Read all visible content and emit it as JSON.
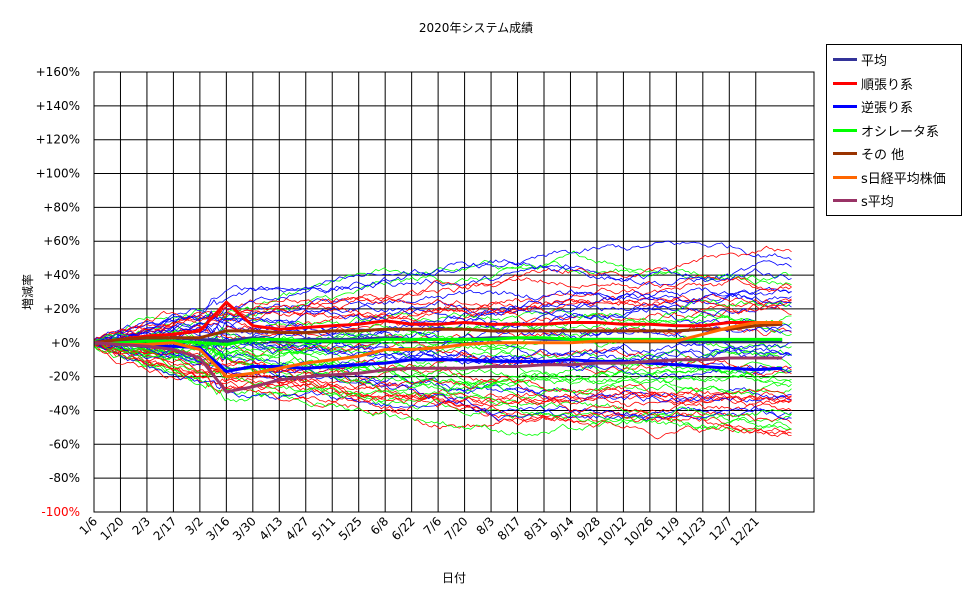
{
  "chart_data": {
    "type": "line",
    "title": "2020年システム成績",
    "xlabel": "日付",
    "ylabel": "増減率",
    "ylim": [
      -100,
      160
    ],
    "yticks": [
      160,
      140,
      120,
      100,
      80,
      60,
      40,
      20,
      0,
      -20,
      -40,
      -60,
      -80,
      -100
    ],
    "ytick_labels": [
      "+160%",
      "+140%",
      "+120%",
      "+100%",
      "+80%",
      "+60%",
      "+40%",
      "+20%",
      "+0%",
      "-20%",
      "-40%",
      "-60%",
      "-80%",
      "-100%"
    ],
    "xtick_labels": [
      "1/6",
      "1/20",
      "2/3",
      "2/17",
      "3/2",
      "3/16",
      "3/30",
      "4/13",
      "4/27",
      "5/11",
      "5/25",
      "6/8",
      "6/22",
      "7/6",
      "7/20",
      "8/3",
      "8/17",
      "8/31",
      "9/14",
      "9/28",
      "10/12",
      "10/26",
      "11/9",
      "11/23",
      "12/7",
      "12/21"
    ],
    "grid": true,
    "legend_position": "right",
    "series": [
      {
        "name": "平均",
        "color": "#333399",
        "values": [
          0,
          1,
          2,
          3,
          2,
          1,
          3,
          1,
          2,
          2,
          2,
          3,
          2,
          2,
          2,
          3,
          3,
          2,
          2,
          2,
          2,
          1,
          1,
          1,
          1,
          1,
          1
        ]
      },
      {
        "name": "順張り系",
        "color": "#ff0000",
        "values": [
          0,
          2,
          4,
          5,
          7,
          24,
          10,
          8,
          9,
          10,
          11,
          13,
          11,
          11,
          12,
          11,
          11,
          11,
          12,
          12,
          11,
          11,
          10,
          10,
          12,
          12,
          12
        ]
      },
      {
        "name": "逆張り系",
        "color": "#0000ff",
        "values": [
          0,
          -1,
          -2,
          -2,
          -3,
          -17,
          -14,
          -14,
          -15,
          -14,
          -13,
          -12,
          -10,
          -10,
          -10,
          -11,
          -11,
          -11,
          -10,
          -11,
          -11,
          -12,
          -13,
          -14,
          -15,
          -16,
          -15
        ]
      },
      {
        "name": "オシレータ系",
        "color": "#00ff00",
        "values": [
          0,
          0,
          1,
          1,
          0,
          -1,
          2,
          2,
          1,
          1,
          1,
          2,
          2,
          2,
          2,
          2,
          3,
          3,
          2,
          2,
          2,
          2,
          2,
          2,
          2,
          2,
          2
        ]
      },
      {
        "name": "その 他",
        "color": "#993300",
        "values": [
          0,
          2,
          3,
          3,
          3,
          7,
          7,
          6,
          6,
          7,
          7,
          8,
          8,
          8,
          8,
          7,
          7,
          7,
          7,
          7,
          7,
          7,
          7,
          8,
          8,
          10,
          11
        ]
      },
      {
        "name": "s日経平均株価",
        "color": "#ff6600",
        "values": [
          0,
          -1,
          -1,
          0,
          -4,
          -20,
          -18,
          -15,
          -12,
          -10,
          -8,
          -4,
          -4,
          -3,
          -1,
          0,
          0,
          0,
          0,
          1,
          1,
          1,
          1,
          5,
          9,
          12,
          12
        ]
      },
      {
        "name": "s平均",
        "color": "#993366",
        "values": [
          0,
          -1,
          -2,
          -4,
          -9,
          -29,
          -26,
          -22,
          -20,
          -19,
          -18,
          -16,
          -15,
          -15,
          -15,
          -14,
          -14,
          -13,
          -13,
          -12,
          -12,
          -11,
          -10,
          -10,
          -9,
          -9,
          -9
        ]
      }
    ]
  }
}
